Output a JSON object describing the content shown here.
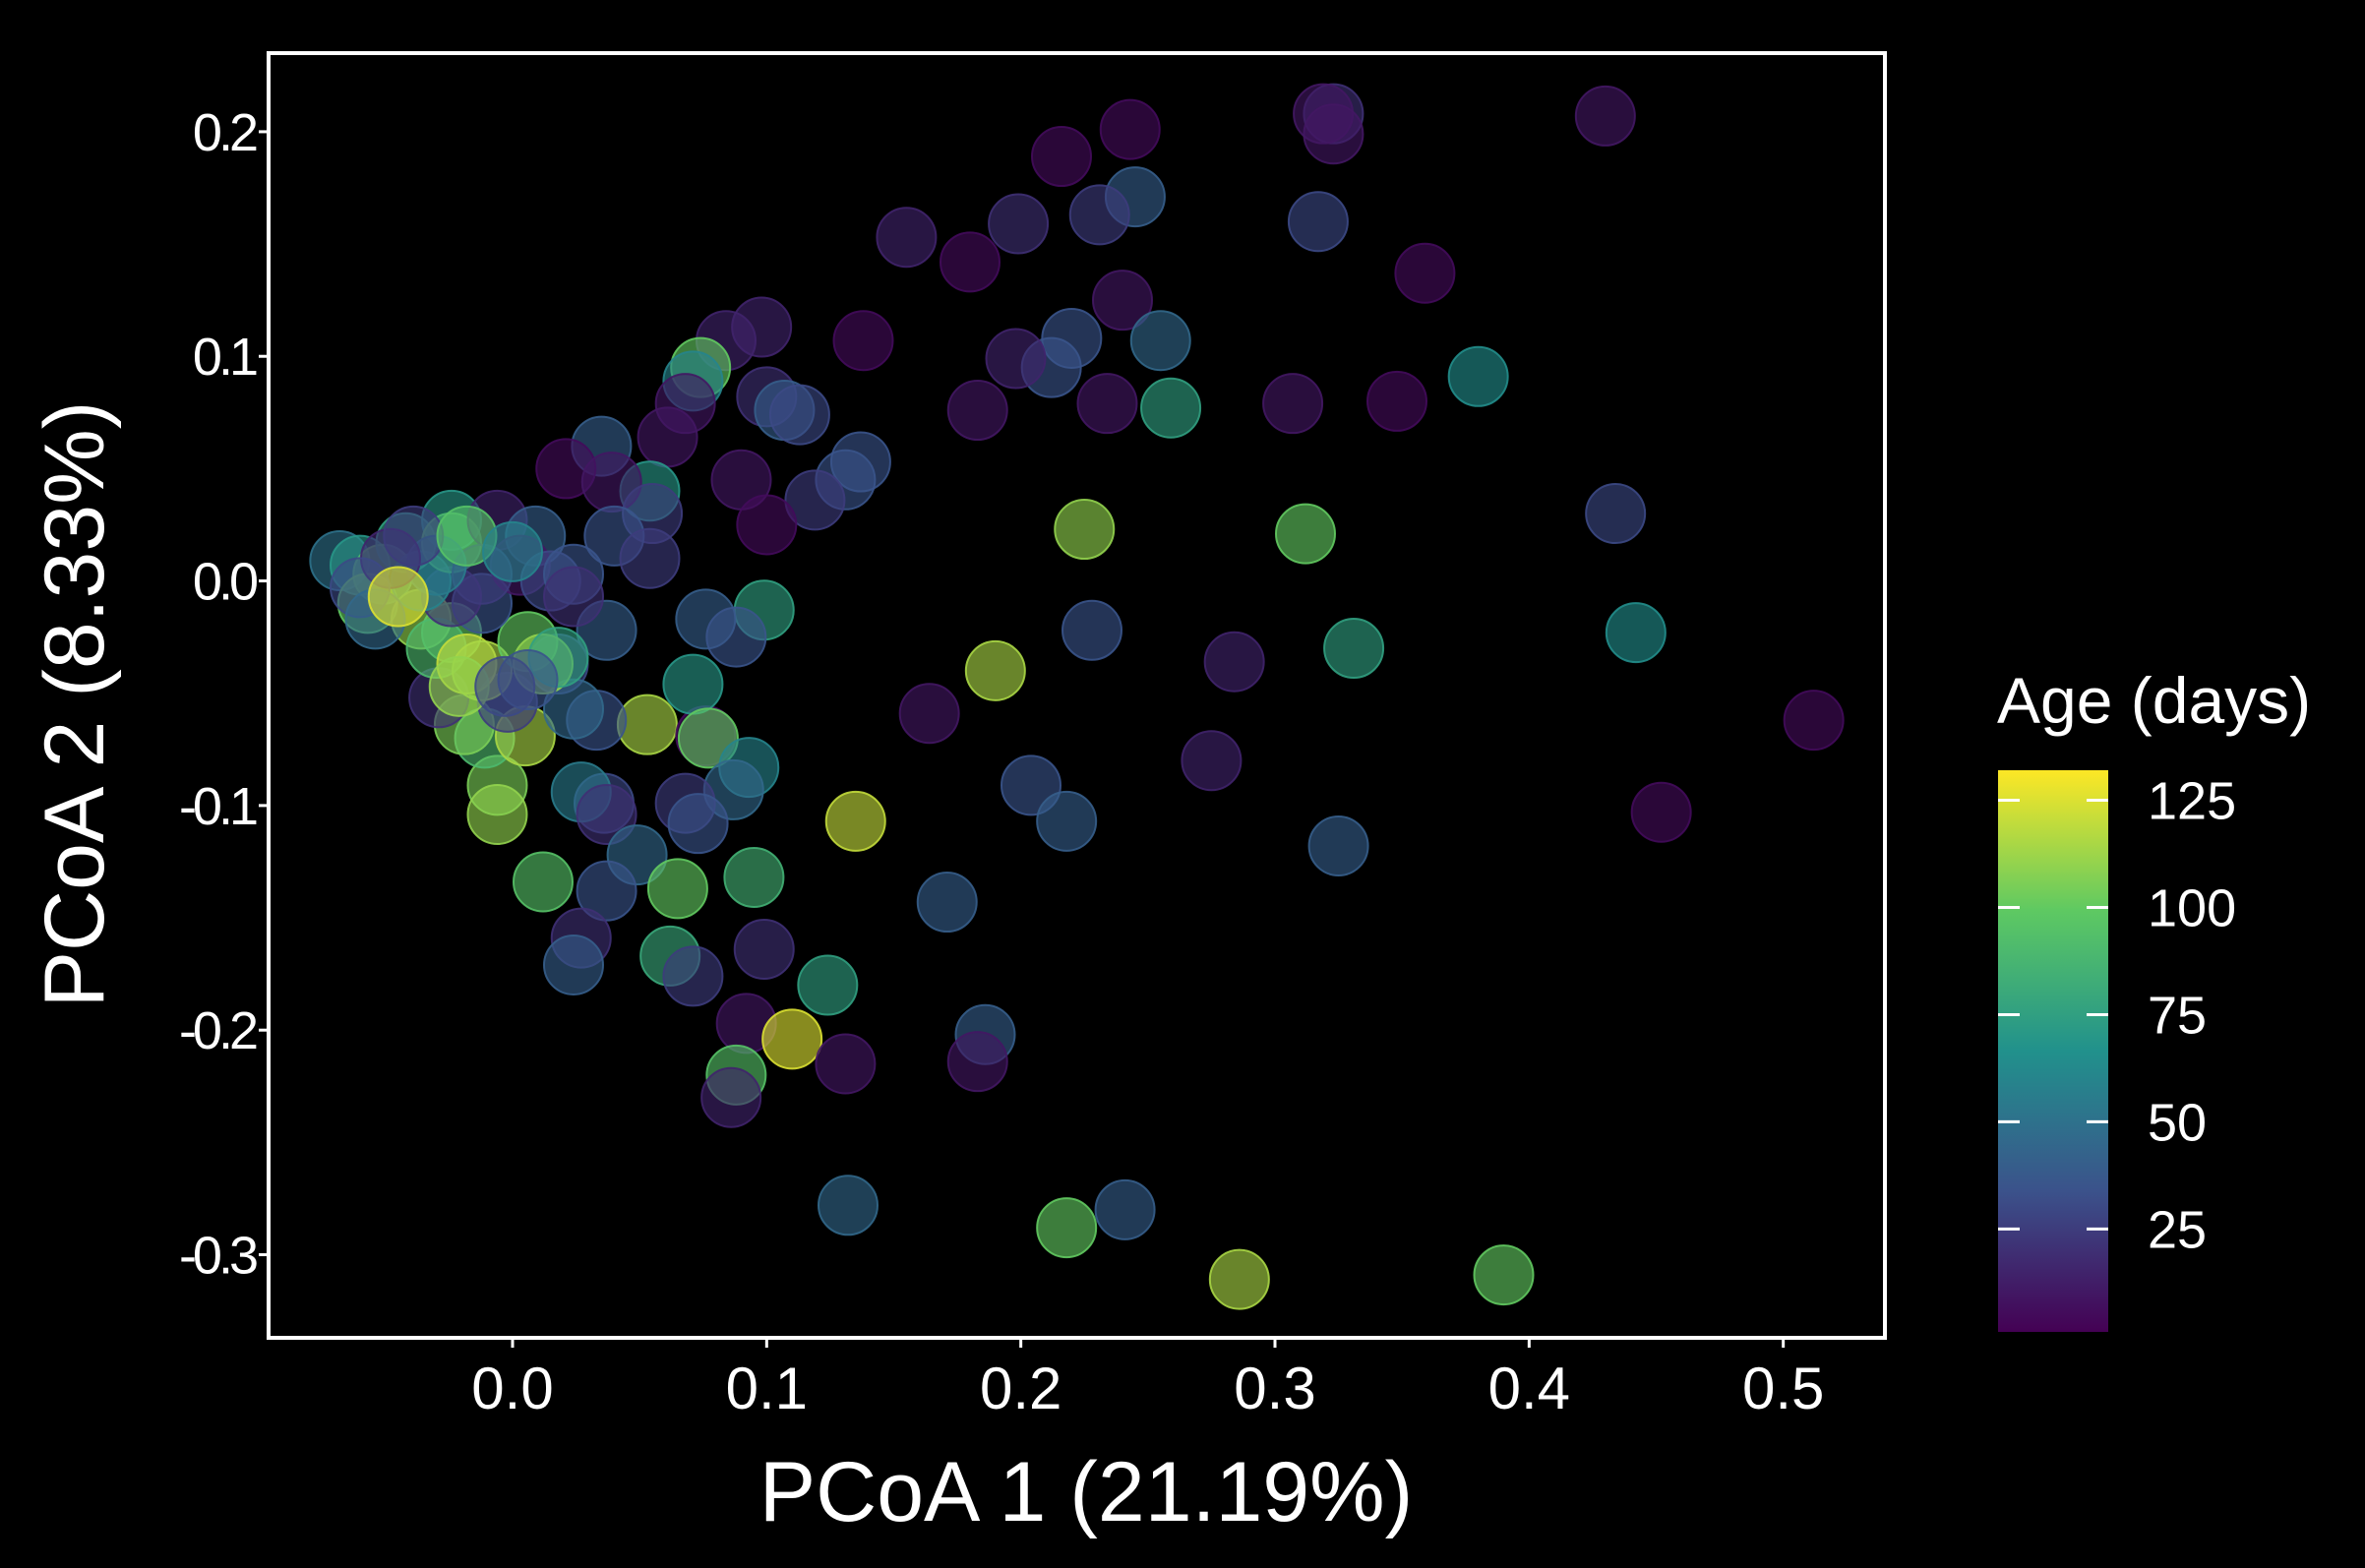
{
  "chart_data": {
    "type": "scatter",
    "xlabel": "PCoA 1 (21.19%)",
    "ylabel": "PCoA 2 (8.33%)",
    "xlim": [
      -0.096,
      0.54
    ],
    "ylim": [
      -0.337,
      0.235
    ],
    "xticks": [
      0.0,
      0.1,
      0.2,
      0.3,
      0.4,
      0.5
    ],
    "xtick_labels": [
      "0.0",
      "0.1",
      "0.2",
      "0.3",
      "0.4",
      "0.5"
    ],
    "yticks": [
      0.2,
      0.1,
      0.0,
      -0.1,
      -0.2,
      -0.3
    ],
    "ytick_labels": [
      "0.2",
      "0.1",
      "0.0",
      "-0.1",
      "-0.2",
      "-0.3"
    ],
    "grid": false,
    "legend": {
      "title": "Age (days)",
      "placement": "right",
      "type": "colorbar",
      "range": [
        1,
        132
      ],
      "ticks": [
        125,
        100,
        75,
        50,
        25
      ],
      "tick_labels": [
        "125",
        "100",
        "75",
        "50",
        "25"
      ],
      "colormap": "viridis"
    },
    "points": [
      [
        0.323,
        0.208,
        20
      ],
      [
        0.319,
        0.208,
        10
      ],
      [
        0.323,
        0.199,
        10
      ],
      [
        0.43,
        0.207,
        10
      ],
      [
        0.243,
        0.201,
        5
      ],
      [
        0.216,
        0.189,
        5
      ],
      [
        0.245,
        0.171,
        40
      ],
      [
        0.231,
        0.163,
        25
      ],
      [
        0.199,
        0.159,
        20
      ],
      [
        0.155,
        0.153,
        15
      ],
      [
        0.18,
        0.142,
        5
      ],
      [
        0.317,
        0.16,
        30
      ],
      [
        0.359,
        0.137,
        5
      ],
      [
        0.24,
        0.125,
        10
      ],
      [
        0.22,
        0.108,
        35
      ],
      [
        0.255,
        0.107,
        45
      ],
      [
        0.212,
        0.095,
        35
      ],
      [
        0.198,
        0.099,
        15
      ],
      [
        0.38,
        0.091,
        65
      ],
      [
        0.259,
        0.077,
        75
      ],
      [
        0.234,
        0.079,
        10
      ],
      [
        0.183,
        0.076,
        10
      ],
      [
        0.307,
        0.079,
        10
      ],
      [
        0.348,
        0.08,
        5
      ],
      [
        0.138,
        0.107,
        5
      ],
      [
        0.098,
        0.113,
        15
      ],
      [
        0.084,
        0.107,
        15
      ],
      [
        0.074,
        0.095,
        100
      ],
      [
        0.071,
        0.089,
        60
      ],
      [
        0.1,
        0.082,
        20
      ],
      [
        0.107,
        0.076,
        40
      ],
      [
        0.113,
        0.074,
        30
      ],
      [
        0.068,
        0.079,
        10
      ],
      [
        0.061,
        0.064,
        10
      ],
      [
        0.137,
        0.053,
        35
      ],
      [
        0.131,
        0.045,
        35
      ],
      [
        0.119,
        0.036,
        25
      ],
      [
        0.09,
        0.045,
        10
      ],
      [
        0.1,
        0.025,
        5
      ],
      [
        0.054,
        0.04,
        70
      ],
      [
        0.035,
        0.06,
        40
      ],
      [
        0.021,
        0.05,
        5
      ],
      [
        0.039,
        0.044,
        10
      ],
      [
        0.055,
        0.03,
        25
      ],
      [
        0.04,
        0.02,
        35
      ],
      [
        0.054,
        0.01,
        25
      ],
      [
        0.434,
        0.03,
        30
      ],
      [
        0.225,
        0.023,
        110
      ],
      [
        0.312,
        0.021,
        100
      ],
      [
        0.099,
        -0.013,
        75
      ],
      [
        0.076,
        -0.017,
        40
      ],
      [
        0.088,
        -0.025,
        35
      ],
      [
        0.037,
        -0.022,
        40
      ],
      [
        0.228,
        -0.022,
        35
      ],
      [
        0.284,
        -0.036,
        15
      ],
      [
        0.331,
        -0.03,
        75
      ],
      [
        0.442,
        -0.023,
        65
      ],
      [
        0.19,
        -0.04,
        115
      ],
      [
        0.164,
        -0.059,
        10
      ],
      [
        0.512,
        -0.062,
        5
      ],
      [
        0.275,
        -0.08,
        15
      ],
      [
        0.204,
        -0.091,
        35
      ],
      [
        0.218,
        -0.107,
        40
      ],
      [
        0.325,
        -0.118,
        40
      ],
      [
        0.452,
        -0.103,
        5
      ],
      [
        0.135,
        -0.107,
        120
      ],
      [
        0.171,
        -0.143,
        40
      ],
      [
        0.053,
        -0.064,
        115
      ],
      [
        0.076,
        -0.069,
        5
      ],
      [
        0.071,
        -0.046,
        70
      ],
      [
        0.077,
        -0.07,
        100
      ],
      [
        0.093,
        -0.083,
        60
      ],
      [
        0.087,
        -0.093,
        45
      ],
      [
        0.068,
        -0.099,
        25
      ],
      [
        0.073,
        -0.108,
        35
      ],
      [
        0.036,
        -0.099,
        30
      ],
      [
        0.027,
        -0.094,
        55
      ],
      [
        0.037,
        -0.104,
        20
      ],
      [
        0.049,
        -0.122,
        45
      ],
      [
        0.037,
        -0.138,
        35
      ],
      [
        0.065,
        -0.137,
        100
      ],
      [
        0.095,
        -0.132,
        85
      ],
      [
        0.012,
        -0.134,
        95
      ],
      [
        0.027,
        -0.159,
        20
      ],
      [
        0.024,
        -0.171,
        40
      ],
      [
        0.062,
        -0.167,
        80
      ],
      [
        0.071,
        -0.176,
        25
      ],
      [
        0.099,
        -0.164,
        20
      ],
      [
        0.124,
        -0.18,
        75
      ],
      [
        0.092,
        -0.197,
        10
      ],
      [
        0.11,
        -0.204,
        125
      ],
      [
        0.131,
        -0.215,
        10
      ],
      [
        0.186,
        -0.202,
        40
      ],
      [
        0.183,
        -0.214,
        10
      ],
      [
        0.088,
        -0.22,
        95
      ],
      [
        0.086,
        -0.23,
        15
      ],
      [
        0.132,
        -0.278,
        45
      ],
      [
        0.218,
        -0.288,
        100
      ],
      [
        0.241,
        -0.28,
        40
      ],
      [
        0.286,
        -0.311,
        115
      ],
      [
        0.39,
        -0.309,
        100
      ],
      [
        -0.006,
        -0.091,
        105
      ],
      [
        -0.006,
        -0.104,
        110
      ],
      [
        -0.011,
        -0.07,
        90
      ],
      [
        0.005,
        -0.069,
        115
      ],
      [
        -0.019,
        -0.064,
        105
      ],
      [
        -0.029,
        -0.052,
        20
      ],
      [
        -0.002,
        -0.054,
        25
      ],
      [
        0.018,
        -0.037,
        30
      ],
      [
        0.033,
        -0.062,
        35
      ],
      [
        0.024,
        -0.057,
        45
      ],
      [
        -0.068,
        0.009,
        50
      ],
      [
        -0.06,
        0.007,
        70
      ],
      [
        -0.051,
        0.003,
        90
      ],
      [
        -0.057,
        -0.01,
        100
      ],
      [
        -0.036,
        -0.017,
        110
      ],
      [
        -0.024,
        -0.023,
        100
      ],
      [
        -0.03,
        -0.03,
        90
      ],
      [
        -0.018,
        -0.037,
        120
      ],
      [
        -0.012,
        -0.04,
        115
      ],
      [
        -0.021,
        -0.047,
        110
      ],
      [
        0.006,
        -0.027,
        100
      ],
      [
        0.012,
        -0.037,
        110
      ],
      [
        0.018,
        -0.034,
        75
      ],
      [
        0.006,
        -0.044,
        35
      ],
      [
        -0.003,
        -0.047,
        30
      ],
      [
        -0.012,
        -0.01,
        35
      ],
      [
        -0.024,
        -0.007,
        20
      ],
      [
        -0.036,
        0.0,
        60
      ],
      [
        -0.042,
        0.017,
        75
      ],
      [
        -0.024,
        0.027,
        70
      ],
      [
        -0.024,
        0.017,
        90
      ],
      [
        -0.006,
        0.027,
        15
      ],
      [
        0.009,
        0.02,
        40
      ],
      [
        0.003,
        0.007,
        10
      ],
      [
        0.015,
        0.0,
        30
      ],
      [
        -0.012,
        0.003,
        25
      ],
      [
        -0.03,
        0.007,
        55
      ],
      [
        -0.048,
        0.01,
        15
      ],
      [
        -0.06,
        -0.003,
        30
      ],
      [
        -0.054,
        -0.017,
        45
      ],
      [
        -0.039,
        0.02,
        25
      ],
      [
        -0.018,
        0.02,
        95
      ],
      [
        0.0,
        0.013,
        60
      ],
      [
        0.024,
        0.003,
        35
      ],
      [
        0.024,
        -0.007,
        20
      ],
      [
        -0.045,
        -0.007,
        125
      ]
    ]
  }
}
